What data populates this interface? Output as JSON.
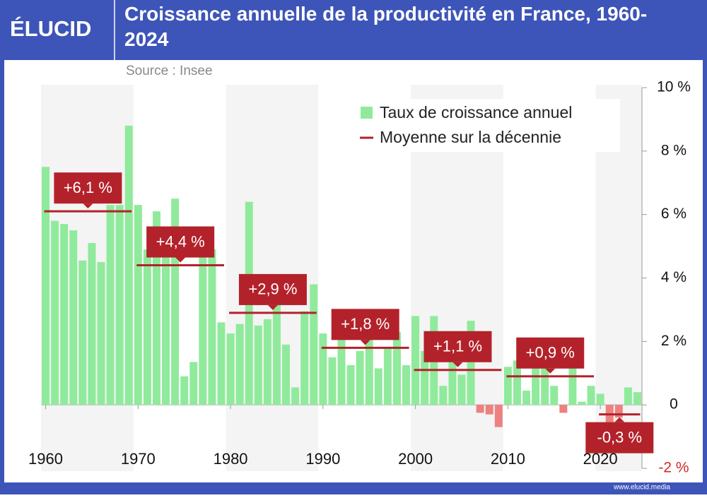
{
  "header": {
    "logo": "ÉLUCID",
    "footer": "www.elucid.media"
  },
  "chart_data": {
    "type": "bar",
    "title": "Croissance annuelle de la productivité en France, 1960-2024",
    "subtitle": "Source : Insee",
    "x": [
      1960,
      1961,
      1962,
      1963,
      1964,
      1965,
      1966,
      1967,
      1968,
      1969,
      1970,
      1971,
      1972,
      1973,
      1974,
      1975,
      1976,
      1977,
      1978,
      1979,
      1980,
      1981,
      1982,
      1983,
      1984,
      1985,
      1986,
      1987,
      1988,
      1989,
      1990,
      1991,
      1992,
      1993,
      1994,
      1995,
      1996,
      1997,
      1998,
      1999,
      2000,
      2001,
      2002,
      2003,
      2004,
      2005,
      2006,
      2007,
      2008,
      2009,
      2010,
      2011,
      2012,
      2013,
      2014,
      2015,
      2016,
      2017,
      2018,
      2019,
      2020,
      2021,
      2022,
      2023,
      2024
    ],
    "xlim": [
      1959.5,
      2024.5
    ],
    "xticks": [
      1960,
      1970,
      1980,
      1990,
      2000,
      2010,
      2020
    ],
    "ylim": [
      -2,
      10
    ],
    "yticks": [
      {
        "value": -2,
        "label": "-2 %"
      },
      0,
      {
        "value": 2,
        "label": "2 %"
      },
      {
        "value": 4,
        "label": "4 %"
      },
      {
        "value": 6,
        "label": "6 %"
      },
      {
        "value": 8,
        "label": "8 %"
      },
      {
        "value": 10,
        "label": "10 %"
      }
    ],
    "series": [
      {
        "name": "Taux de croissance annuel",
        "color": "#90ea9c",
        "negative_color": "#ee8080",
        "values": [
          7.5,
          5.8,
          5.7,
          5.5,
          4.55,
          5.1,
          4.5,
          6.3,
          6.3,
          8.8,
          6.3,
          4.9,
          6.1,
          5.0,
          6.5,
          0.9,
          1.35,
          5.0,
          4.9,
          2.6,
          2.25,
          2.55,
          6.4,
          2.5,
          2.7,
          3.2,
          1.9,
          0.55,
          2.95,
          3.8,
          2.25,
          1.5,
          2.3,
          1.25,
          1.7,
          2.1,
          1.15,
          1.8,
          2.3,
          1.25,
          2.8,
          1.7,
          2.8,
          0.6,
          1.35,
          0.95,
          2.65,
          -0.25,
          -0.3,
          -0.7,
          1.2,
          1.4,
          0.45,
          1.4,
          1.55,
          0.6,
          -0.25,
          1.5,
          0.1,
          0.6,
          0.35,
          -1.3,
          -0.4,
          0.55,
          0.4
        ]
      }
    ],
    "averages": {
      "name": "Moyenne sur la décennie",
      "color": "#b3222a",
      "values": [
        6.1,
        4.4,
        2.9,
        1.8,
        1.1,
        0.9,
        -0.3
      ],
      "value_labels": [
        "+6,1 %",
        "+4,4 %",
        "+2,9 %",
        "+1,8 %",
        "+1,1 %",
        "+0,9 %",
        "-0,3 %"
      ]
    },
    "bands": true
  }
}
